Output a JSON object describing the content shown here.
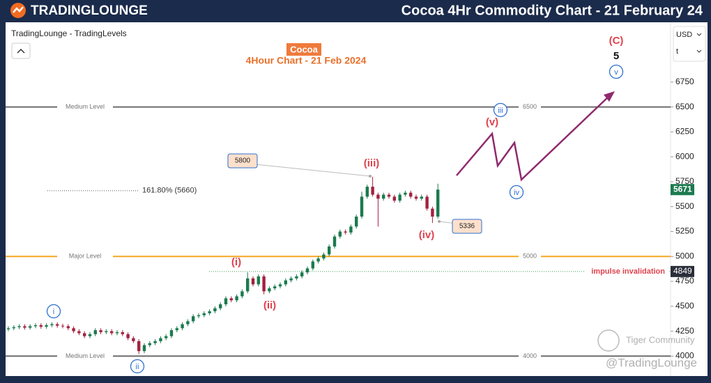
{
  "header": {
    "logo": "TRADINGLOUNGE",
    "title": "Cocoa 4Hr Commodity Chart - 21 February 24"
  },
  "toolbar": {
    "source": "TradingLounge - TradingLevels",
    "currency": "USD",
    "unit": "t"
  },
  "watermarks": [
    "Tiger Community",
    "@TradingLounge"
  ],
  "chart_data": {
    "type": "candlestick",
    "title": "Cocoa",
    "subtitle": "4Hour Chart - 21 Feb 2024",
    "ylim": [
      3800,
      7350
    ],
    "yticks": [
      4000,
      4250,
      4500,
      4750,
      5000,
      5250,
      5500,
      5750,
      6000,
      6250,
      6500,
      6750
    ],
    "up_color": "#1b7a4e",
    "down_color": "#a3213f",
    "open": [
      4270,
      4280,
      4290,
      4300,
      4285,
      4300,
      4310,
      4295,
      4310,
      4320,
      4305,
      4300,
      4280,
      4250,
      4230,
      4200,
      4220,
      4260,
      4240,
      4250,
      4230,
      4240,
      4220,
      4180,
      4150,
      4050,
      4110,
      4130,
      4150,
      4180,
      4200,
      4260,
      4280,
      4320,
      4350,
      4400,
      4410,
      4430,
      4450,
      4480,
      4520,
      4580,
      4560,
      4600,
      4650,
      4780,
      4720,
      4800,
      4650,
      4680,
      4700,
      4720,
      4760,
      4780,
      4800,
      4840,
      4880,
      4950,
      4980,
      5020,
      5100,
      5200,
      5250,
      5240,
      5300,
      5400,
      5600,
      5700,
      5620,
      5580,
      5620,
      5600,
      5560,
      5620,
      5640,
      5600,
      5580,
      5600,
      5480,
      5400
    ],
    "high": [
      4300,
      4310,
      4320,
      4320,
      4320,
      4330,
      4330,
      4330,
      4340,
      4340,
      4325,
      4320,
      4300,
      4270,
      4250,
      4240,
      4280,
      4280,
      4270,
      4270,
      4260,
      4260,
      4240,
      4200,
      4170,
      4130,
      4150,
      4170,
      4200,
      4220,
      4280,
      4300,
      4340,
      4370,
      4420,
      4430,
      4450,
      4470,
      4500,
      4540,
      4600,
      4600,
      4620,
      4670,
      4840,
      4800,
      4820,
      4820,
      4700,
      4720,
      4740,
      4780,
      4800,
      4820,
      4860,
      4900,
      4970,
      5000,
      5040,
      5120,
      5220,
      5270,
      5270,
      5320,
      5420,
      5650,
      5720,
      5800,
      5640,
      5640,
      5640,
      5620,
      5640,
      5660,
      5660,
      5620,
      5620,
      5620,
      5500,
      5730
    ],
    "low": [
      4250,
      4260,
      4270,
      4265,
      4265,
      4280,
      4275,
      4275,
      4290,
      4285,
      4280,
      4260,
      4230,
      4210,
      4180,
      4180,
      4200,
      4220,
      4220,
      4210,
      4210,
      4200,
      4160,
      4130,
      4020,
      4030,
      4090,
      4110,
      4130,
      4160,
      4180,
      4240,
      4260,
      4300,
      4330,
      4380,
      4390,
      4410,
      4430,
      4460,
      4500,
      4540,
      4540,
      4580,
      4630,
      4700,
      4700,
      4620,
      4630,
      4660,
      4680,
      4700,
      4740,
      4760,
      4780,
      4820,
      4860,
      4930,
      4960,
      5000,
      5080,
      5180,
      5220,
      5220,
      5280,
      5380,
      5580,
      5600,
      5300,
      5560,
      5580,
      5540,
      5540,
      5600,
      5580,
      5560,
      5560,
      5460,
      5336,
      5380
    ],
    "close": [
      4280,
      4290,
      4300,
      4285,
      4300,
      4310,
      4295,
      4310,
      4320,
      4305,
      4300,
      4280,
      4250,
      4230,
      4200,
      4220,
      4260,
      4240,
      4250,
      4230,
      4240,
      4220,
      4180,
      4150,
      4050,
      4110,
      4130,
      4150,
      4180,
      4200,
      4260,
      4280,
      4320,
      4350,
      4400,
      4410,
      4430,
      4450,
      4480,
      4520,
      4580,
      4560,
      4600,
      4650,
      4780,
      4720,
      4800,
      4650,
      4680,
      4700,
      4720,
      4760,
      4780,
      4800,
      4840,
      4880,
      4950,
      4980,
      5020,
      5100,
      5200,
      5250,
      5240,
      5300,
      5400,
      5600,
      5700,
      5620,
      5580,
      5620,
      5600,
      5560,
      5620,
      5640,
      5600,
      5580,
      5600,
      5480,
      5400,
      5671
    ],
    "last_price": 5671,
    "levels": [
      {
        "label": "Medium Level",
        "value": 6500,
        "color": "#6b6b6b"
      },
      {
        "label": "Major Level",
        "value": 5000,
        "color": "#f5a623"
      },
      {
        "label": "Medium Level",
        "value": 4000,
        "color": "#6b6b6b"
      }
    ],
    "invalidation": {
      "label": "impulse invalidation",
      "value": 4849
    },
    "fib": {
      "label": "161.80% (5660)",
      "value": 5660
    },
    "callouts": [
      {
        "value": 5800
      },
      {
        "value": 5336
      }
    ],
    "wave_labels": [
      {
        "label": "i",
        "color": "#2e6fd1",
        "circled": true
      },
      {
        "label": "ii",
        "color": "#2e6fd1",
        "circled": true
      },
      {
        "label": "iii",
        "color": "#2e6fd1",
        "circled": true
      },
      {
        "label": "iv",
        "color": "#2e6fd1",
        "circled": true
      },
      {
        "label": "v",
        "color": "#2e6fd1",
        "circled": true
      },
      {
        "label": "(i)",
        "color": "#e0424e",
        "circled": false
      },
      {
        "label": "(ii)",
        "color": "#e0424e",
        "circled": false
      },
      {
        "label": "(iii)",
        "color": "#e0424e",
        "circled": false
      },
      {
        "label": "(iv)",
        "color": "#e0424e",
        "circled": false
      },
      {
        "label": "(v)",
        "color": "#e0424e",
        "circled": false
      },
      {
        "label": "(C)",
        "color": "#e0424e",
        "circled": false
      },
      {
        "label": "5",
        "color": "#111111",
        "circled": false
      }
    ]
  }
}
